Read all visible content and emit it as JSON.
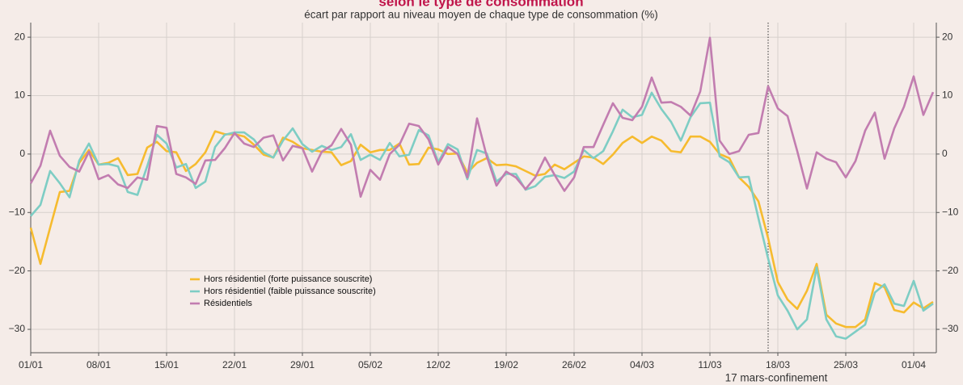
{
  "chart_data": {
    "type": "line",
    "title": "selon le type de consommation",
    "subtitle": "écart par rapport au niveau moyen de chaque type de consommation (%)",
    "categories": [
      "01/01",
      null,
      null,
      null,
      null,
      null,
      null,
      "08/01",
      null,
      null,
      null,
      null,
      null,
      null,
      "15/01",
      null,
      null,
      null,
      null,
      null,
      null,
      "22/01",
      null,
      null,
      null,
      null,
      null,
      null,
      "29/01",
      null,
      null,
      null,
      null,
      null,
      null,
      "05/02",
      null,
      null,
      null,
      null,
      null,
      null,
      "12/02",
      null,
      null,
      null,
      null,
      null,
      null,
      "19/02",
      null,
      null,
      null,
      null,
      null,
      null,
      "26/02",
      null,
      null,
      null,
      null,
      null,
      null,
      "04/03",
      null,
      null,
      null,
      null,
      null,
      null,
      "11/03",
      null,
      null,
      null,
      null,
      null,
      null,
      "18/03",
      null,
      null,
      null,
      null,
      null,
      null,
      "25/03",
      null,
      null,
      null,
      null,
      null,
      null,
      "01/04",
      null,
      null
    ],
    "series": [
      {
        "name": "Hors résidentiel (forte puissance souscrite)",
        "color": "#f6bb2f",
        "values": [
          -12.6,
          -18.8,
          -12.6,
          -6.5,
          -6.3,
          -1.5,
          0.7,
          -1.8,
          -1.5,
          -0.7,
          -3.6,
          -3.4,
          1.1,
          2.1,
          0.5,
          0.3,
          -2.9,
          -1.7,
          0.3,
          3.9,
          3.4,
          3.4,
          3,
          1.6,
          -0.1,
          -0.6,
          2.8,
          2.1,
          1,
          0.7,
          0.4,
          0.3,
          -1.9,
          -1.2,
          1.6,
          0.3,
          0.7,
          0.7,
          1.8,
          -1.8,
          -1.7,
          1.1,
          0.8,
          0,
          0.1,
          -3.2,
          -1.5,
          -0.7,
          -1.9,
          -1.8,
          -2.1,
          -2.9,
          -3.7,
          -3.4,
          -1.8,
          -2.6,
          -1.5,
          -0.4,
          -0.6,
          -1.7,
          -0.1,
          1.9,
          3,
          1.9,
          3,
          2.3,
          0.5,
          0.3,
          3,
          3,
          2.1,
          0,
          -0.7,
          -4,
          -5.6,
          -8.1,
          -14.4,
          -21.9,
          -24.9,
          -26.5,
          -23.4,
          -18.8,
          -27.5,
          -29,
          -29.6,
          -29.6,
          -28.3,
          -22.1,
          -22.8,
          -26.7,
          -27.1,
          -25.4,
          -26.4,
          -25.3
        ]
      },
      {
        "name": "Hors résidentiel (faible puissance souscrite)",
        "color": "#7ecdc4",
        "values": [
          -10.6,
          -8.7,
          -2.9,
          -5,
          -7.4,
          -1.1,
          1.8,
          -1.8,
          -1.7,
          -2.1,
          -6.5,
          -7,
          -2.1,
          3.3,
          1.8,
          -2.3,
          -1.7,
          -5.8,
          -4.7,
          1.2,
          3.3,
          3.7,
          3.7,
          2.5,
          0.3,
          -0.6,
          2.3,
          4.4,
          1.7,
          0.4,
          1.4,
          0.7,
          1.2,
          3.4,
          -1,
          -0.1,
          -1,
          1.9,
          -0.4,
          -0.1,
          4.1,
          3.2,
          -1.4,
          1.7,
          0.8,
          -4.3,
          0.7,
          0.1,
          -4.7,
          -3.4,
          -3.4,
          -6.1,
          -5.5,
          -3.9,
          -3.6,
          -4.1,
          -3,
          0.7,
          -0.7,
          0.5,
          3.9,
          7.6,
          6.3,
          6.7,
          10.5,
          7.7,
          5.5,
          2.3,
          6.3,
          8.7,
          8.8,
          -0.4,
          -1.4,
          -4,
          -3.9,
          -11,
          -17.9,
          -24.2,
          -26.8,
          -30,
          -28.3,
          -19.4,
          -28.3,
          -31.2,
          -31.6,
          -30.4,
          -29.2,
          -23.7,
          -22.3,
          -25.6,
          -26,
          -21.7,
          -26.8,
          -25.6
        ]
      },
      {
        "name": "Résidentiels",
        "color": "#c27db0",
        "values": [
          -5,
          -2,
          4,
          -0.3,
          -2.2,
          -3,
          0.4,
          -4.3,
          -3.6,
          -5.2,
          -5.8,
          -4,
          -4.4,
          4.8,
          4.5,
          -3.4,
          -4,
          -5.1,
          -1.1,
          -1,
          1,
          3.6,
          1.8,
          1.2,
          2.8,
          3.2,
          -1.1,
          1.4,
          1,
          -3,
          0.4,
          1.5,
          4.3,
          1.6,
          -7.3,
          -2.7,
          -4.4,
          0,
          1.6,
          5.2,
          4.8,
          2.5,
          -1.8,
          1.2,
          0,
          -4,
          6.1,
          -0.4,
          -5.4,
          -3,
          -4,
          -6,
          -4,
          -0.6,
          -3.6,
          -6.3,
          -4,
          1.2,
          1.2,
          5,
          8.7,
          6.2,
          5.8,
          8.1,
          13.1,
          8.8,
          8.9,
          8.1,
          6.6,
          10.7,
          19.9,
          2.3,
          0,
          0.5,
          3.3,
          3.6,
          11.6,
          7.8,
          6.5,
          0.5,
          -5.9,
          0.3,
          -0.8,
          -1.4,
          -4,
          -1.2,
          4,
          7.1,
          -0.8,
          4.4,
          8.1,
          13.3,
          6.7,
          10.6
        ]
      }
    ],
    "ylim": [
      -34,
      22.5
    ],
    "yticks": [
      {
        "value": -30,
        "label": "−30"
      },
      {
        "value": -20,
        "label": "−20"
      },
      {
        "value": -10,
        "label": "−10"
      },
      0,
      10,
      20
    ],
    "grid": true,
    "annotation": {
      "x": 76,
      "text": "17 mars-confinement"
    }
  }
}
